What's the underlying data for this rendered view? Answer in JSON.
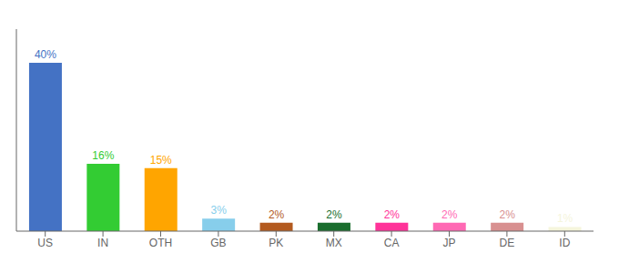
{
  "chart_data": {
    "type": "bar",
    "categories": [
      "US",
      "IN",
      "OTH",
      "GB",
      "PK",
      "MX",
      "CA",
      "JP",
      "DE",
      "ID"
    ],
    "values": [
      40,
      16,
      15,
      3,
      2,
      2,
      2,
      2,
      2,
      1
    ],
    "value_labels": [
      "40%",
      "16%",
      "15%",
      "3%",
      "2%",
      "2%",
      "2%",
      "2%",
      "2%",
      "1%"
    ],
    "colors": [
      "#4472c4",
      "#33cc33",
      "#ffa500",
      "#87ceeb",
      "#b35a1f",
      "#1a6e2e",
      "#ff3399",
      "#ff69b4",
      "#d89090",
      "#f5f5dc"
    ],
    "ylim": [
      0,
      48
    ],
    "data_labels": true,
    "tick_labels": "x",
    "grid": false
  }
}
